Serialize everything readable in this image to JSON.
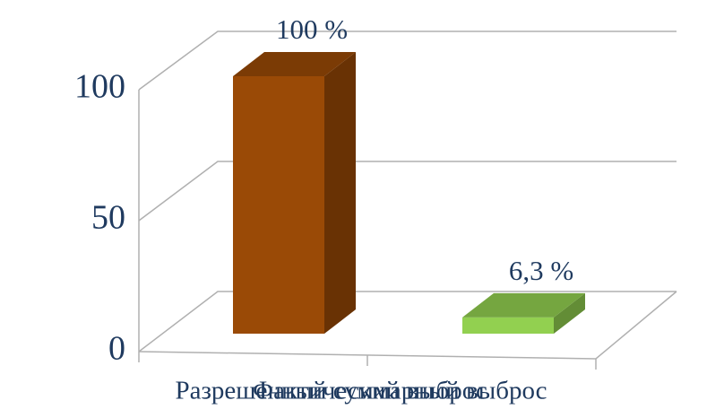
{
  "chart_data": {
    "type": "bar3d",
    "categories": [
      "Разрешенный суммарный выброс",
      "Фактический выброс"
    ],
    "values": [
      100,
      6.3
    ],
    "value_labels": [
      "100 %",
      "6,3 %"
    ],
    "colors": [
      "#9a4a06",
      "#92d050"
    ],
    "ylim": [
      0,
      100
    ],
    "yticks": [
      0,
      50,
      100
    ],
    "grid": true
  }
}
